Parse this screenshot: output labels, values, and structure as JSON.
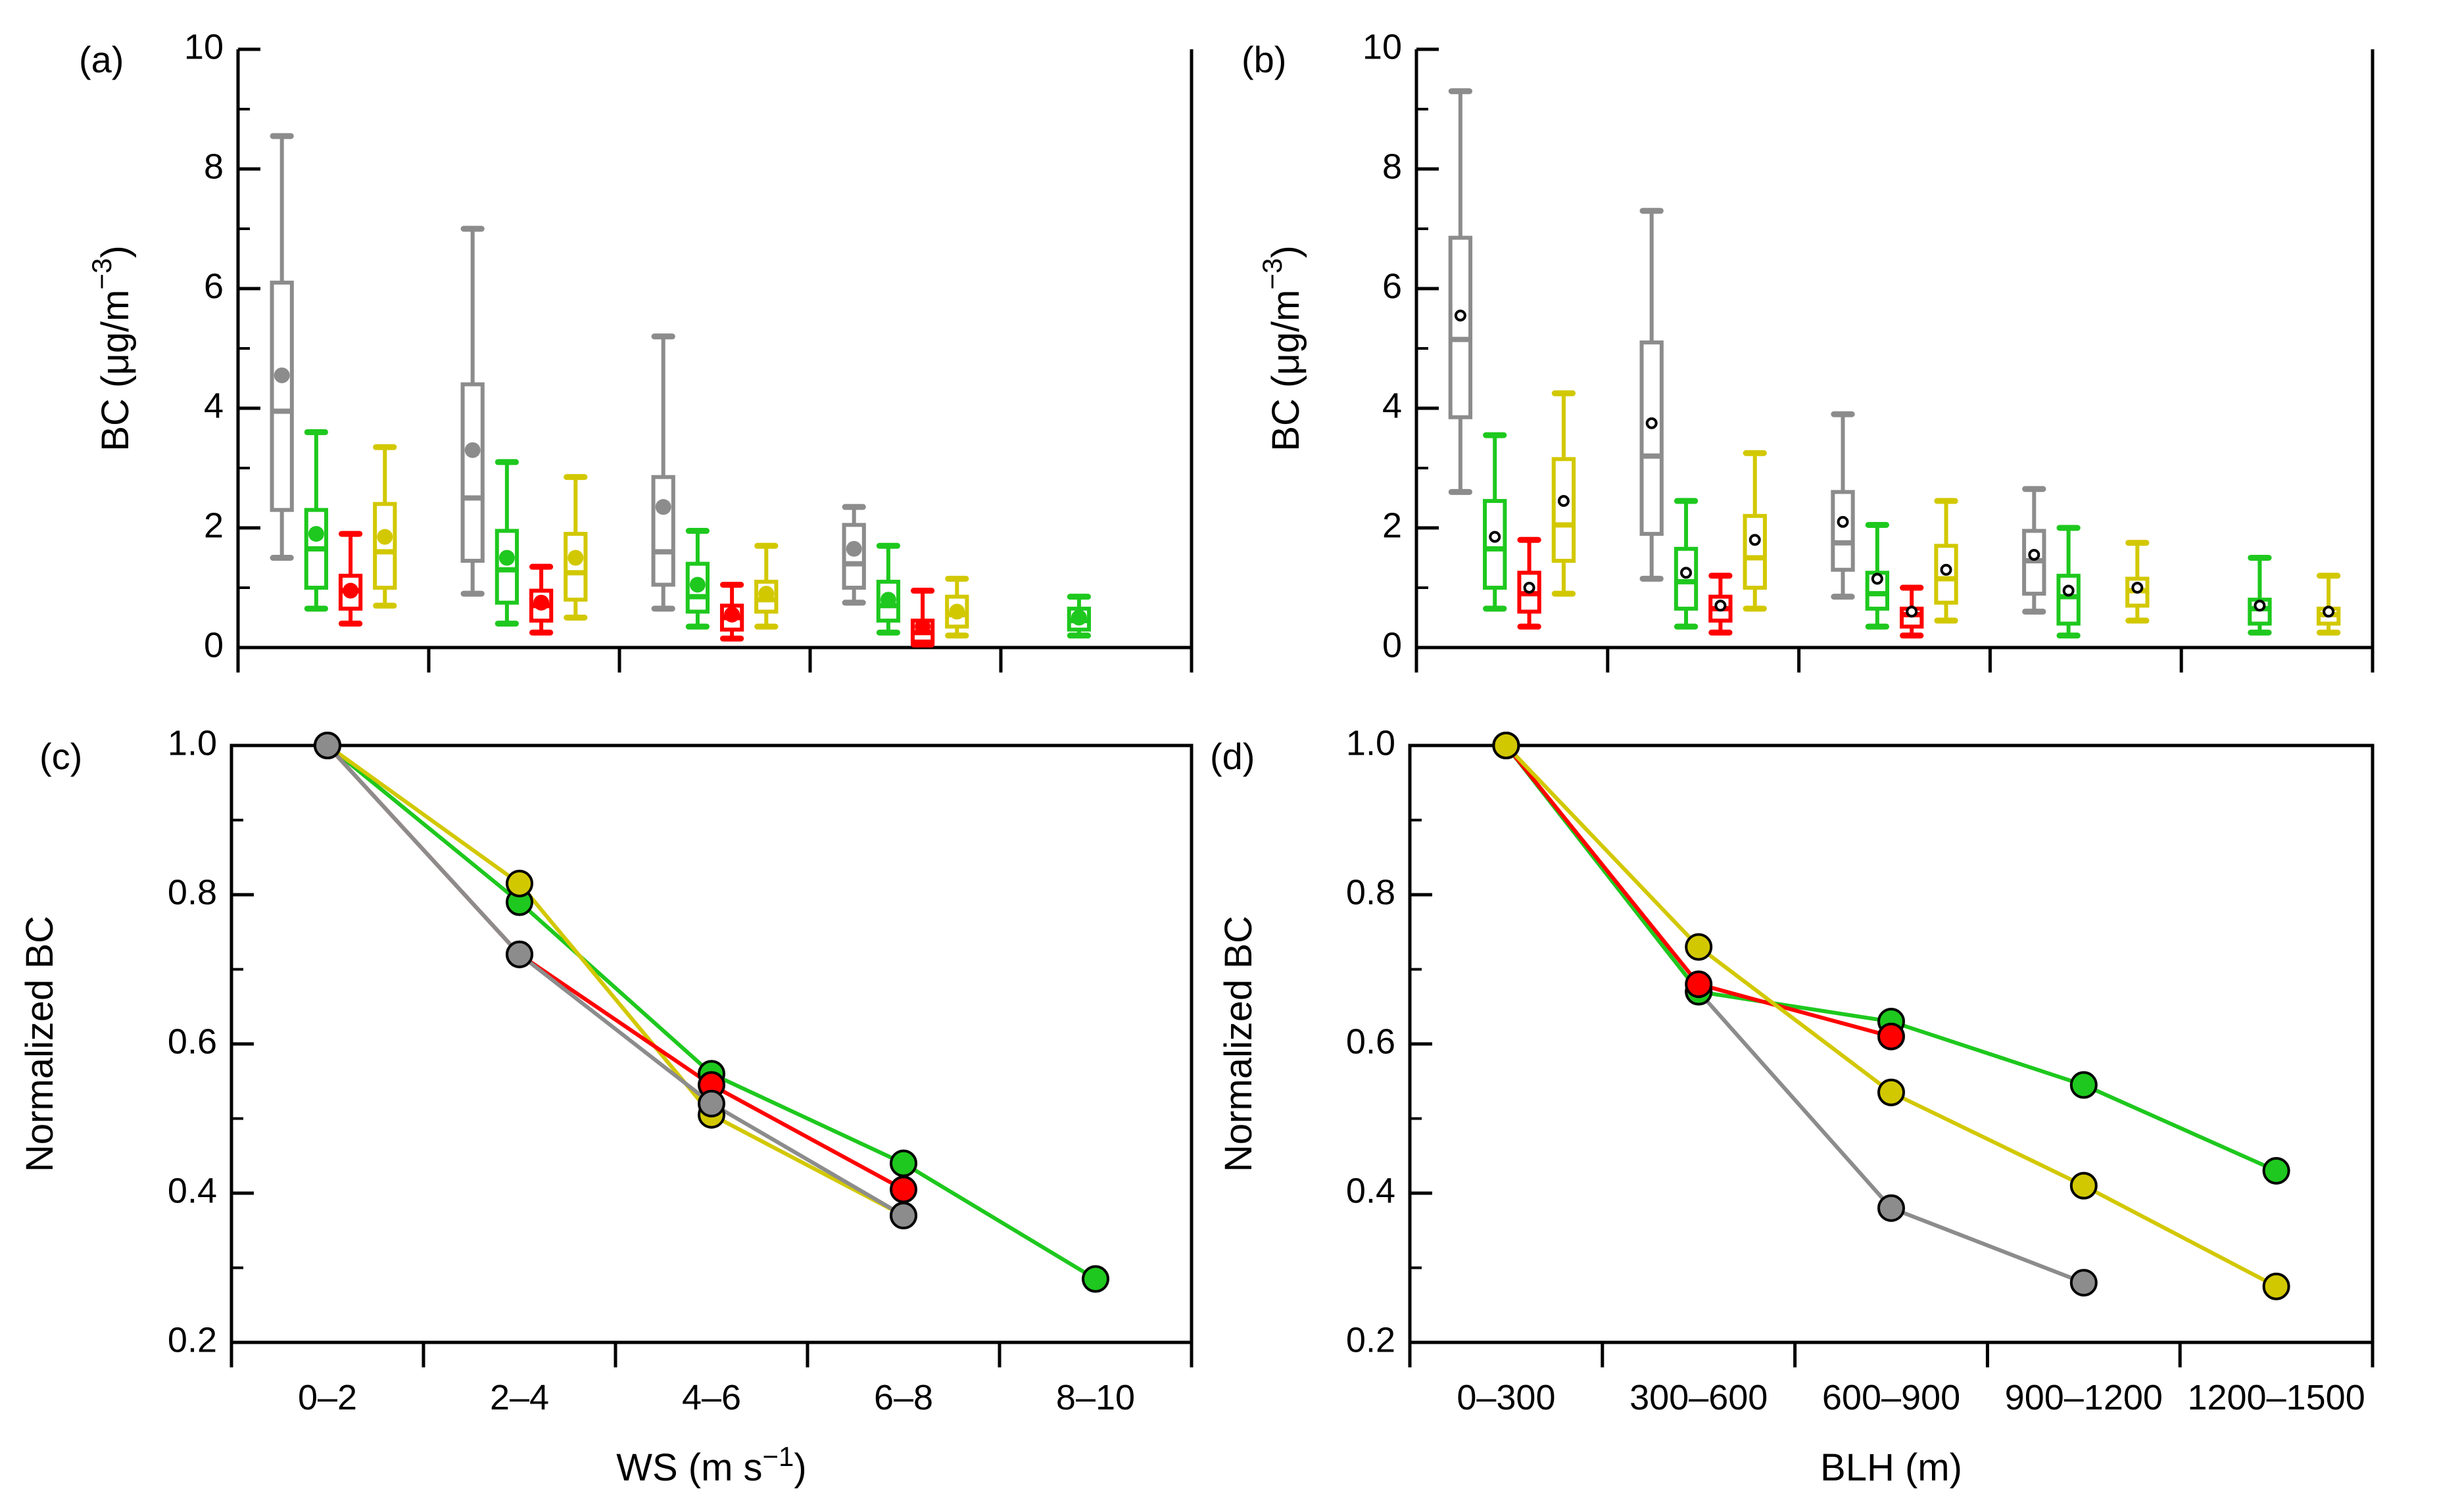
{
  "figure": {
    "background": "#ffffff",
    "axis_color": "#000000"
  },
  "series_colors": [
    "#8c8c8c",
    "#1ec81e",
    "#ff0000",
    "#d2c800"
  ],
  "chart_data": [
    {
      "panel": "(a)",
      "type": "box",
      "ylabel": "BC (μg/m",
      "ylabel_sup": "−3",
      "ylabel_close": ")",
      "ylim": [
        0,
        10
      ],
      "yticks": [
        0,
        2,
        4,
        6,
        8,
        10
      ],
      "ytick_labels": [
        "0",
        "2",
        "4",
        "6",
        "8",
        "10"
      ],
      "n_categories": 5,
      "mean_style": "filled",
      "boxes": [
        {
          "cat": 0,
          "series": 0,
          "whislo": 1.5,
          "q1": 2.3,
          "med": 3.95,
          "q3": 6.1,
          "whishi": 8.55,
          "mean": 4.55
        },
        {
          "cat": 0,
          "series": 1,
          "whislo": 0.65,
          "q1": 1.0,
          "med": 1.65,
          "q3": 2.3,
          "whishi": 3.6,
          "mean": 1.9
        },
        {
          "cat": 0,
          "series": 2,
          "whislo": 0.4,
          "q1": 0.65,
          "med": 0.95,
          "q3": 1.2,
          "whishi": 1.9,
          "mean": 0.95
        },
        {
          "cat": 0,
          "series": 3,
          "whislo": 0.7,
          "q1": 1.0,
          "med": 1.6,
          "q3": 2.4,
          "whishi": 3.35,
          "mean": 1.85
        },
        {
          "cat": 1,
          "series": 0,
          "whislo": 0.9,
          "q1": 1.45,
          "med": 2.5,
          "q3": 4.4,
          "whishi": 7.0,
          "mean": 3.3
        },
        {
          "cat": 1,
          "series": 1,
          "whislo": 0.4,
          "q1": 0.75,
          "med": 1.3,
          "q3": 1.95,
          "whishi": 3.1,
          "mean": 1.5
        },
        {
          "cat": 1,
          "series": 2,
          "whislo": 0.25,
          "q1": 0.45,
          "med": 0.7,
          "q3": 0.95,
          "whishi": 1.35,
          "mean": 0.75
        },
        {
          "cat": 1,
          "series": 3,
          "whislo": 0.5,
          "q1": 0.8,
          "med": 1.25,
          "q3": 1.9,
          "whishi": 2.85,
          "mean": 1.5
        },
        {
          "cat": 2,
          "series": 0,
          "whislo": 0.65,
          "q1": 1.05,
          "med": 1.6,
          "q3": 2.85,
          "whishi": 5.2,
          "mean": 2.35
        },
        {
          "cat": 2,
          "series": 1,
          "whislo": 0.35,
          "q1": 0.6,
          "med": 0.85,
          "q3": 1.4,
          "whishi": 1.95,
          "mean": 1.05
        },
        {
          "cat": 2,
          "series": 2,
          "whislo": 0.15,
          "q1": 0.3,
          "med": 0.5,
          "q3": 0.7,
          "whishi": 1.05,
          "mean": 0.55
        },
        {
          "cat": 2,
          "series": 3,
          "whislo": 0.35,
          "q1": 0.6,
          "med": 0.8,
          "q3": 1.1,
          "whishi": 1.7,
          "mean": 0.9
        },
        {
          "cat": 3,
          "series": 0,
          "whislo": 0.75,
          "q1": 1.0,
          "med": 1.4,
          "q3": 2.05,
          "whishi": 2.35,
          "mean": 1.65
        },
        {
          "cat": 3,
          "series": 1,
          "whislo": 0.25,
          "q1": 0.45,
          "med": 0.7,
          "q3": 1.1,
          "whishi": 1.7,
          "mean": 0.8
        },
        {
          "cat": 3,
          "series": 2,
          "whislo": 0.05,
          "q1": 0.1,
          "med": 0.25,
          "q3": 0.45,
          "whishi": 0.95,
          "mean": 0.35
        },
        {
          "cat": 3,
          "series": 3,
          "whislo": 0.2,
          "q1": 0.35,
          "med": 0.55,
          "q3": 0.85,
          "whishi": 1.15,
          "mean": 0.6
        },
        {
          "cat": 4,
          "series": 1,
          "whislo": 0.2,
          "q1": 0.3,
          "med": 0.45,
          "q3": 0.65,
          "whishi": 0.85,
          "mean": 0.5
        }
      ]
    },
    {
      "panel": "(b)",
      "type": "box",
      "ylabel": "BC (μg/m",
      "ylabel_sup": "−3",
      "ylabel_close": ")",
      "ylim": [
        0,
        10
      ],
      "yticks": [
        0,
        2,
        4,
        6,
        8,
        10
      ],
      "ytick_labels": [
        "0",
        "2",
        "4",
        "6",
        "8",
        "10"
      ],
      "n_categories": 5,
      "mean_style": "small-dot",
      "boxes": [
        {
          "cat": 0,
          "series": 0,
          "whislo": 2.6,
          "q1": 3.85,
          "med": 5.15,
          "q3": 6.85,
          "whishi": 9.3,
          "mean": 5.55
        },
        {
          "cat": 0,
          "series": 1,
          "whislo": 0.65,
          "q1": 1.0,
          "med": 1.65,
          "q3": 2.45,
          "whishi": 3.55,
          "mean": 1.85
        },
        {
          "cat": 0,
          "series": 2,
          "whislo": 0.35,
          "q1": 0.6,
          "med": 0.9,
          "q3": 1.25,
          "whishi": 1.8,
          "mean": 1.0
        },
        {
          "cat": 0,
          "series": 3,
          "whislo": 0.9,
          "q1": 1.45,
          "med": 2.05,
          "q3": 3.15,
          "whishi": 4.25,
          "mean": 2.45
        },
        {
          "cat": 1,
          "series": 0,
          "whislo": 1.15,
          "q1": 1.9,
          "med": 3.2,
          "q3": 5.1,
          "whishi": 7.3,
          "mean": 3.75
        },
        {
          "cat": 1,
          "series": 1,
          "whislo": 0.35,
          "q1": 0.65,
          "med": 1.1,
          "q3": 1.65,
          "whishi": 2.45,
          "mean": 1.25
        },
        {
          "cat": 1,
          "series": 2,
          "whislo": 0.25,
          "q1": 0.45,
          "med": 0.65,
          "q3": 0.85,
          "whishi": 1.2,
          "mean": 0.7
        },
        {
          "cat": 1,
          "series": 3,
          "whislo": 0.65,
          "q1": 1.0,
          "med": 1.5,
          "q3": 2.2,
          "whishi": 3.25,
          "mean": 1.8
        },
        {
          "cat": 2,
          "series": 0,
          "whislo": 0.85,
          "q1": 1.3,
          "med": 1.75,
          "q3": 2.6,
          "whishi": 3.9,
          "mean": 2.1
        },
        {
          "cat": 2,
          "series": 1,
          "whislo": 0.35,
          "q1": 0.65,
          "med": 0.9,
          "q3": 1.25,
          "whishi": 2.05,
          "mean": 1.15
        },
        {
          "cat": 2,
          "series": 2,
          "whislo": 0.2,
          "q1": 0.35,
          "med": 0.55,
          "q3": 0.65,
          "whishi": 1.0,
          "mean": 0.6
        },
        {
          "cat": 2,
          "series": 3,
          "whislo": 0.45,
          "q1": 0.75,
          "med": 1.15,
          "q3": 1.7,
          "whishi": 2.45,
          "mean": 1.3
        },
        {
          "cat": 3,
          "series": 0,
          "whislo": 0.6,
          "q1": 0.9,
          "med": 1.45,
          "q3": 1.95,
          "whishi": 2.65,
          "mean": 1.55
        },
        {
          "cat": 3,
          "series": 1,
          "whislo": 0.2,
          "q1": 0.4,
          "med": 0.85,
          "q3": 1.2,
          "whishi": 2.0,
          "mean": 0.95
        },
        {
          "cat": 3,
          "series": 3,
          "whislo": 0.45,
          "q1": 0.7,
          "med": 0.95,
          "q3": 1.15,
          "whishi": 1.75,
          "mean": 1.0
        },
        {
          "cat": 4,
          "series": 1,
          "whislo": 0.25,
          "q1": 0.4,
          "med": 0.65,
          "q3": 0.8,
          "whishi": 1.5,
          "mean": 0.7
        },
        {
          "cat": 4,
          "series": 3,
          "whislo": 0.25,
          "q1": 0.4,
          "med": 0.55,
          "q3": 0.65,
          "whishi": 1.2,
          "mean": 0.6
        }
      ]
    },
    {
      "panel": "(c)",
      "type": "line",
      "categories": [
        "0–2",
        "2–4",
        "4–6",
        "6–8",
        "8–10"
      ],
      "xlabel": "WS (m s",
      "xlabel_sup": "−1",
      "xlabel_close": ")",
      "ylabel": "Normalized BC",
      "ylim": [
        0.2,
        1.0
      ],
      "yticks": [
        0.2,
        0.4,
        0.6,
        0.8,
        1.0
      ],
      "ytick_labels": [
        "0.2",
        "0.4",
        "0.6",
        "0.8",
        "1.0"
      ],
      "series": [
        {
          "color_index": 1,
          "values": [
            1.0,
            0.79,
            0.56,
            0.44,
            0.285
          ]
        },
        {
          "color_index": 3,
          "values": [
            1.0,
            0.815,
            0.505,
            0.37,
            null
          ]
        },
        {
          "color_index": 2,
          "values": [
            1.0,
            0.72,
            0.545,
            0.405,
            null
          ]
        },
        {
          "color_index": 0,
          "values": [
            1.0,
            0.72,
            0.52,
            0.37,
            null
          ]
        }
      ]
    },
    {
      "panel": "(d)",
      "type": "line",
      "categories": [
        "0–300",
        "300–600",
        "600–900",
        "900–1200",
        "1200–1500"
      ],
      "xlabel": "BLH (m)",
      "ylabel": "Normalized BC",
      "ylim": [
        0.2,
        1.0
      ],
      "yticks": [
        0.2,
        0.4,
        0.6,
        0.8,
        1.0
      ],
      "ytick_labels": [
        "0.2",
        "0.4",
        "0.6",
        "0.8",
        "1.0"
      ],
      "series": [
        {
          "color_index": 0,
          "values": [
            1.0,
            0.67,
            0.38,
            0.28,
            null
          ]
        },
        {
          "color_index": 1,
          "values": [
            1.0,
            0.67,
            0.63,
            0.545,
            0.43
          ]
        },
        {
          "color_index": 2,
          "values": [
            1.0,
            0.68,
            0.61,
            null,
            null
          ]
        },
        {
          "color_index": 3,
          "values": [
            1.0,
            0.73,
            0.535,
            0.41,
            0.275
          ]
        }
      ]
    }
  ]
}
